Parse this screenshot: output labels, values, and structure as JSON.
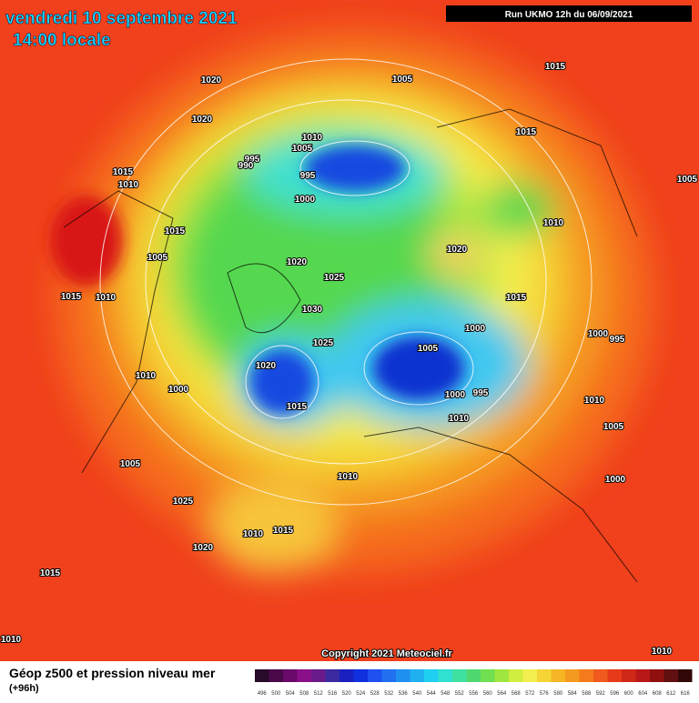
{
  "header": {
    "date": "vendredi 10 septembre 2021",
    "time": "14:00 locale",
    "run": "Run UKMO 12h du 06/09/2021"
  },
  "map": {
    "isobar_labels": [
      1020,
      1005,
      1015,
      1020,
      1010,
      1005,
      995,
      990,
      995,
      1015,
      1015,
      1010,
      1005,
      1000,
      1010,
      1015,
      1020,
      1005,
      1020,
      1025,
      1015,
      1010,
      1015,
      1030,
      1000,
      1000,
      995,
      1025,
      1005,
      1020,
      1010,
      1000,
      1000,
      995,
      1015,
      1010,
      1010,
      1005,
      1005,
      1010,
      1000,
      1025,
      1010,
      1015,
      1020,
      1015,
      1010,
      1010
    ],
    "copyright": "Copyright 2021 Meteociel.fr"
  },
  "legend": {
    "title": "Géop z500 et pression niveau mer",
    "subtitle": "(+96h)",
    "scale": [
      496,
      500,
      504,
      508,
      512,
      516,
      520,
      524,
      528,
      532,
      536,
      540,
      544,
      548,
      552,
      556,
      560,
      564,
      568,
      572,
      576,
      580,
      584,
      588,
      592,
      596,
      600,
      604,
      608,
      612,
      616
    ]
  }
}
